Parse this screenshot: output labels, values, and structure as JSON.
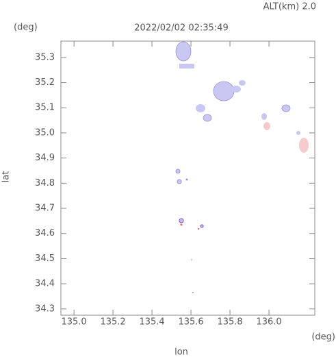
{
  "chart_data": {
    "type": "map",
    "title": "2022/02/02 02:35:49",
    "subtitle": "ALT(km) 2.0",
    "y_unit": "(deg)",
    "x_unit": "(deg)",
    "xlabel": "lon",
    "ylabel": "lat",
    "xlim": [
      134.933,
      136.235
    ],
    "ylim": [
      34.275,
      35.365
    ],
    "xticks": [
      {
        "value": 135,
        "label": "135.0"
      },
      135.2,
      135.4,
      135.6,
      135.8,
      {
        "value": 136,
        "label": "136.0"
      }
    ],
    "yticks": [
      34.3,
      34.4,
      34.5,
      34.6,
      34.7,
      34.8,
      34.9,
      {
        "value": 35,
        "label": "35.0"
      },
      35.1,
      35.2,
      35.3
    ]
  }
}
